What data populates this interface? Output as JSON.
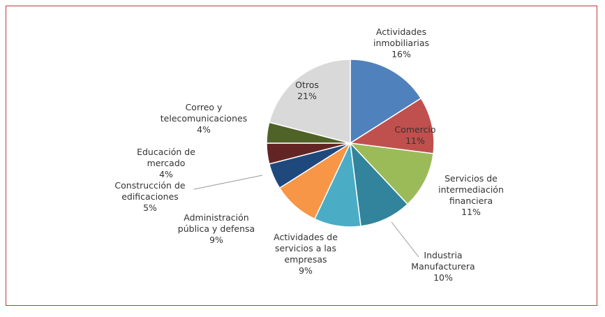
{
  "chart_data": {
    "type": "pie",
    "categories": [
      "Actividades inmobiliarias",
      "Comercio",
      "Servicios de intermediación financiera",
      "Industria Manufacturera",
      "Actividades de servicios a las empresas",
      "Administración pública y defensa",
      "Construcción de edificaciones",
      "Educación de mercado",
      "Correo y telecomunicaciones",
      "Otros"
    ],
    "values": [
      16,
      11,
      11,
      10,
      9,
      9,
      5,
      4,
      4,
      21
    ],
    "value_labels": [
      "16%",
      "11%",
      "11%",
      "10%",
      "9%",
      "9%",
      "5%",
      "4%",
      "4%",
      "21%"
    ],
    "colors": [
      "#4f81bd",
      "#c0504d",
      "#9bbb59",
      "#31849b",
      "#4bacc6",
      "#f79646",
      "#1f497d",
      "#632523",
      "#4f6228",
      "#d9d9d9"
    ]
  }
}
